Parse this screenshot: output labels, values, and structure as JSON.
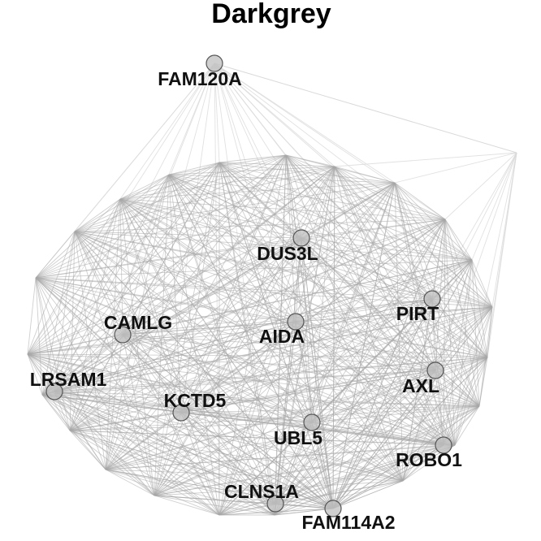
{
  "title": "Darkgrey",
  "colors": {
    "edge_dense": "#a8a8a8",
    "edge_faint": "#d9d9d9",
    "node_fill": "#bfbfbf",
    "node_stroke": "#555555"
  },
  "nodes": [
    {
      "id": "FAM120A",
      "label": "FAM120A"
    },
    {
      "id": "DUS3L",
      "label": "DUS3L"
    },
    {
      "id": "PIRT",
      "label": "PIRT"
    },
    {
      "id": "CAMLG",
      "label": "CAMLG"
    },
    {
      "id": "AIDA",
      "label": "AIDA"
    },
    {
      "id": "LRSAM1",
      "label": "LRSAM1"
    },
    {
      "id": "AXL",
      "label": "AXL"
    },
    {
      "id": "KCTD5",
      "label": "KCTD5"
    },
    {
      "id": "UBL5",
      "label": "UBL5"
    },
    {
      "id": "ROBO1",
      "label": "ROBO1"
    },
    {
      "id": "CLNS1A",
      "label": "CLNS1A"
    },
    {
      "id": "FAM114A2",
      "label": "FAM114A2"
    }
  ]
}
